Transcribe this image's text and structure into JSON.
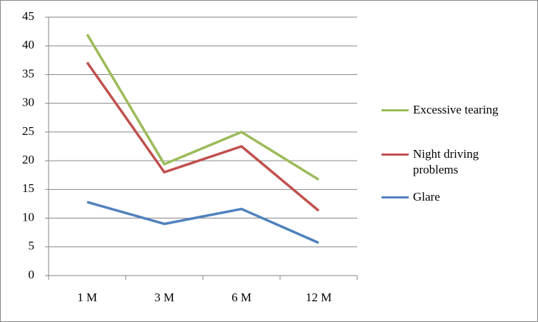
{
  "chart_data": {
    "type": "line",
    "categories": [
      "1 M",
      "3 M",
      "6 M",
      "12 M"
    ],
    "series": [
      {
        "name": "Excessive tearing",
        "color": "#9bbb59",
        "values": [
          42,
          19.4,
          25,
          16.7
        ]
      },
      {
        "name": "Night driving problems",
        "color": "#c0504d",
        "values": [
          37.1,
          18,
          22.5,
          11.3
        ]
      },
      {
        "name": "Glare",
        "color": "#4f81bd",
        "values": [
          12.8,
          9,
          11.6,
          5.7
        ]
      }
    ],
    "ylim": [
      0,
      45
    ],
    "yticks": [
      0,
      5,
      10,
      15,
      20,
      25,
      30,
      35,
      40,
      45
    ],
    "grid": true,
    "legend": "right"
  }
}
